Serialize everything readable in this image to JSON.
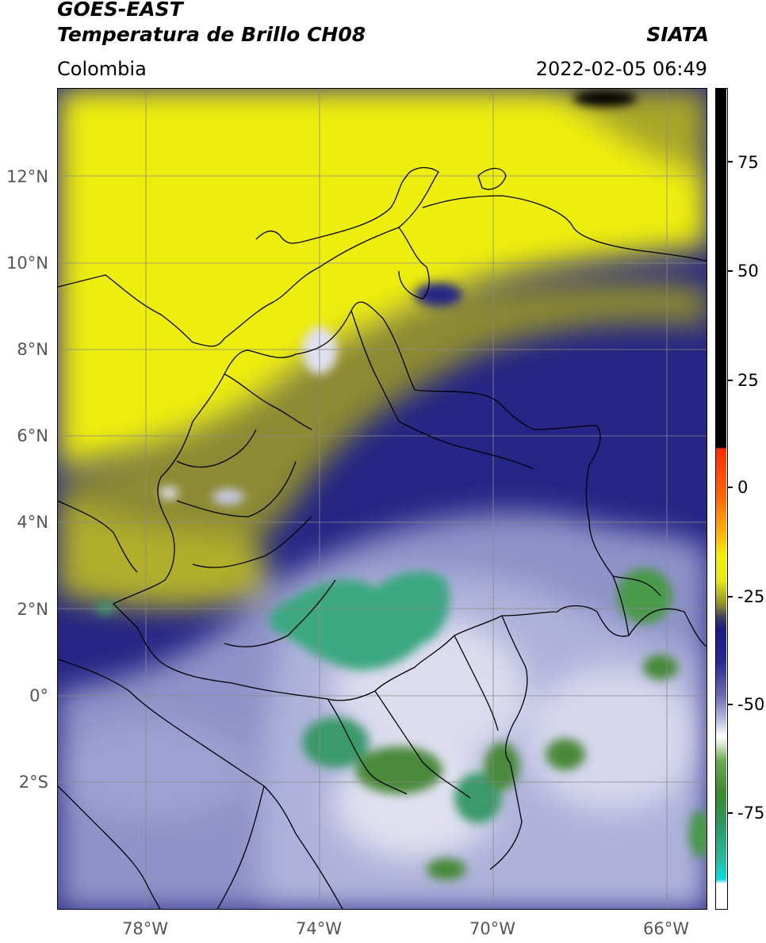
{
  "header": {
    "satellite": "GOES-EAST",
    "product": "Temperatura de Brillo CH08",
    "agency": "SIATA",
    "region": "Colombia",
    "datetime": "2022-02-05 06:49"
  },
  "axes": {
    "lat_labels": [
      "12°N",
      "10°N",
      "8°N",
      "6°N",
      "4°N",
      "2°N",
      "0°",
      "2°S"
    ],
    "lon_labels": [
      "78°W",
      "74°W",
      "70°W",
      "66°W"
    ]
  },
  "colorbar": {
    "labels": [
      "75",
      "50",
      "25",
      "0",
      "-25",
      "-50",
      "-75"
    ],
    "colors": {
      "black": "#000000",
      "red": "#ff2a00",
      "orange": "#ff9a00",
      "yellow": "#f2f200",
      "olive": "#8c8c2a",
      "navy": "#1a1a80",
      "lavender": "#b8bce0",
      "white": "#ffffff",
      "green": "#3a8a2a",
      "teal": "#2ab89a",
      "cyan": "#00e0e0"
    }
  },
  "map_colors": {
    "yellow": "#eeee10",
    "olive": "#a8a628",
    "navy": "#252585",
    "slate": "#5a5aa8",
    "lavender": "#aeb2da",
    "white": "#e8e8f4",
    "green": "#4a9a3a",
    "teal": "#3ab08a",
    "border": "#000000",
    "grid": "#8a8a8a"
  }
}
